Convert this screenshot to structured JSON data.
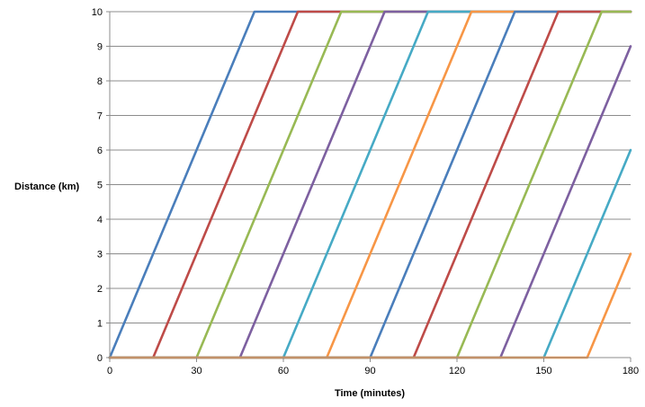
{
  "chart_data": {
    "type": "line",
    "title": "",
    "xlabel": "Time (minutes)",
    "ylabel": "Distance  (km)",
    "xlim": [
      0,
      180
    ],
    "ylim": [
      0,
      10
    ],
    "xticks": [
      0,
      30,
      60,
      90,
      120,
      150,
      180
    ],
    "yticks": [
      0,
      1,
      2,
      3,
      4,
      5,
      6,
      7,
      8,
      9,
      10
    ],
    "grid": "horizontal",
    "legend": "none",
    "series": [
      {
        "color": "#4a7ebb",
        "x": [
          0,
          50,
          180
        ],
        "y": [
          0,
          10,
          10
        ]
      },
      {
        "color": "#be4b48",
        "x": [
          0,
          15,
          65,
          180
        ],
        "y": [
          0,
          0,
          10,
          10
        ]
      },
      {
        "color": "#98b954",
        "x": [
          0,
          30,
          80,
          180
        ],
        "y": [
          0,
          0,
          10,
          10
        ]
      },
      {
        "color": "#7d60a0",
        "x": [
          0,
          45,
          95,
          180
        ],
        "y": [
          0,
          0,
          10,
          10
        ]
      },
      {
        "color": "#46aac5",
        "x": [
          0,
          60,
          110,
          180
        ],
        "y": [
          0,
          0,
          10,
          10
        ]
      },
      {
        "color": "#f79646",
        "x": [
          0,
          75,
          125,
          180
        ],
        "y": [
          0,
          0,
          10,
          10
        ]
      },
      {
        "color": "#4a7ebb",
        "x": [
          0,
          90,
          140,
          180
        ],
        "y": [
          0,
          0,
          10,
          10
        ]
      },
      {
        "color": "#be4b48",
        "x": [
          0,
          105,
          155,
          180
        ],
        "y": [
          0,
          0,
          10,
          10
        ]
      },
      {
        "color": "#98b954",
        "x": [
          0,
          120,
          170,
          180
        ],
        "y": [
          0,
          0,
          10,
          10
        ]
      },
      {
        "color": "#7d60a0",
        "x": [
          0,
          135,
          180
        ],
        "y": [
          0,
          0,
          9
        ]
      },
      {
        "color": "#46aac5",
        "x": [
          0,
          150,
          180
        ],
        "y": [
          0,
          0,
          6
        ]
      },
      {
        "color": "#f79646",
        "x": [
          0,
          165,
          180
        ],
        "y": [
          0,
          0,
          3
        ]
      }
    ]
  }
}
